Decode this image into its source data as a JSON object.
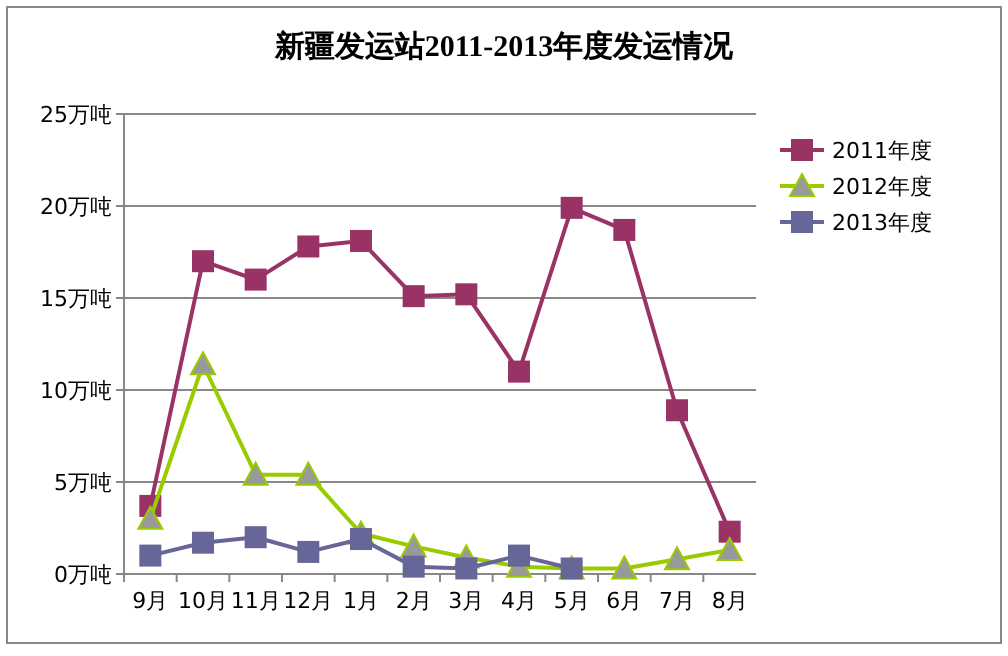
{
  "chart_data": {
    "type": "line",
    "title": "新疆发运站2011-2013年度发运情况",
    "categories": [
      "9月",
      "10月",
      "11月",
      "12月",
      "1月",
      "2月",
      "3月",
      "4月",
      "5月",
      "6月",
      "7月",
      "8月"
    ],
    "series": [
      {
        "name": "2011年度",
        "color": "#993366",
        "marker": "square",
        "values": [
          3.7,
          17,
          16,
          17.8,
          18.1,
          15.1,
          15.2,
          11,
          19.9,
          18.7,
          8.9,
          2.3
        ]
      },
      {
        "name": "2012年度",
        "color": "#99cc00",
        "marker": "triangle",
        "values": [
          3.0,
          11.4,
          5.4,
          5.4,
          2.2,
          1.5,
          0.9,
          0.4,
          0.3,
          0.3,
          0.8,
          1.3
        ]
      },
      {
        "name": "2013年度",
        "color": "#666699",
        "marker": "square",
        "values": [
          1.0,
          1.7,
          2.0,
          1.2,
          1.9,
          0.4,
          0.3,
          1.0,
          0.3,
          null,
          null,
          null
        ]
      }
    ],
    "ylim": [
      0,
      25
    ],
    "yticks": [
      {
        "value": 0,
        "label": "0万吨"
      },
      {
        "value": 5,
        "label": "5万吨"
      },
      {
        "value": 10,
        "label": "10万吨"
      },
      {
        "value": 15,
        "label": "15万吨"
      },
      {
        "value": 20,
        "label": "20万吨"
      },
      {
        "value": 25,
        "label": "25万吨"
      }
    ],
    "grid": "y",
    "legend": "right"
  }
}
